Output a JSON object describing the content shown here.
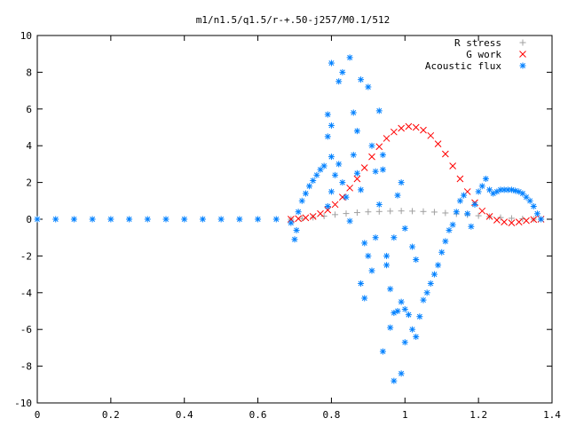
{
  "chart_data": {
    "type": "scatter",
    "title": "m1/n1.5/q1.5/r-+.50-j257/M0.1/512",
    "xlabel": "",
    "ylabel": "",
    "xlim": [
      0,
      1.4
    ],
    "ylim": [
      -10,
      10
    ],
    "x_ticks": [
      "0",
      "0.2",
      "0.4",
      "0.6",
      "0.8",
      "1",
      "1.2",
      "1.4"
    ],
    "y_ticks": [
      "-10",
      "-8",
      "-6",
      "-4",
      "-2",
      "0",
      "2",
      "4",
      "6",
      "8",
      "10"
    ],
    "grid": false,
    "legend_position": "top-right",
    "series": [
      {
        "name": "R stress",
        "marker": "plus",
        "color": "#a0a0a0",
        "points": [
          [
            0.69,
            0.0
          ],
          [
            0.72,
            0.04
          ],
          [
            0.75,
            0.1
          ],
          [
            0.78,
            0.17
          ],
          [
            0.81,
            0.25
          ],
          [
            0.84,
            0.31
          ],
          [
            0.87,
            0.36
          ],
          [
            0.9,
            0.4
          ],
          [
            0.93,
            0.42
          ],
          [
            0.96,
            0.44
          ],
          [
            0.99,
            0.45
          ],
          [
            1.02,
            0.44
          ],
          [
            1.05,
            0.42
          ],
          [
            1.08,
            0.39
          ],
          [
            1.11,
            0.34
          ],
          [
            1.14,
            0.29
          ],
          [
            1.17,
            0.24
          ],
          [
            1.2,
            0.19
          ],
          [
            1.23,
            0.14
          ],
          [
            1.26,
            0.09
          ],
          [
            1.29,
            0.05
          ],
          [
            1.32,
            0.02
          ],
          [
            1.35,
            0.0
          ],
          [
            1.37,
            0.0
          ]
        ]
      },
      {
        "name": "G work",
        "marker": "cross",
        "color": "#ff0000",
        "points": [
          [
            0.69,
            0.0
          ],
          [
            0.71,
            0.03
          ],
          [
            0.73,
            0.08
          ],
          [
            0.75,
            0.15
          ],
          [
            0.77,
            0.3
          ],
          [
            0.79,
            0.5
          ],
          [
            0.81,
            0.8
          ],
          [
            0.83,
            1.2
          ],
          [
            0.85,
            1.7
          ],
          [
            0.87,
            2.2
          ],
          [
            0.89,
            2.8
          ],
          [
            0.91,
            3.4
          ],
          [
            0.93,
            3.95
          ],
          [
            0.95,
            4.4
          ],
          [
            0.97,
            4.75
          ],
          [
            0.99,
            4.95
          ],
          [
            1.01,
            5.05
          ],
          [
            1.03,
            5.0
          ],
          [
            1.05,
            4.85
          ],
          [
            1.07,
            4.55
          ],
          [
            1.09,
            4.1
          ],
          [
            1.11,
            3.55
          ],
          [
            1.13,
            2.9
          ],
          [
            1.15,
            2.2
          ],
          [
            1.17,
            1.5
          ],
          [
            1.19,
            0.9
          ],
          [
            1.21,
            0.45
          ],
          [
            1.23,
            0.15
          ],
          [
            1.25,
            -0.05
          ],
          [
            1.27,
            -0.15
          ],
          [
            1.29,
            -0.2
          ],
          [
            1.31,
            -0.15
          ],
          [
            1.33,
            -0.08
          ],
          [
            1.35,
            -0.02
          ],
          [
            1.37,
            0.0
          ]
        ]
      },
      {
        "name": "Acoustic flux",
        "marker": "star",
        "color": "#0080ff",
        "points": [
          [
            0.0,
            0.0
          ],
          [
            0.05,
            0.0
          ],
          [
            0.1,
            0.0
          ],
          [
            0.15,
            0.0
          ],
          [
            0.2,
            0.0
          ],
          [
            0.25,
            0.0
          ],
          [
            0.3,
            0.0
          ],
          [
            0.35,
            0.0
          ],
          [
            0.4,
            0.0
          ],
          [
            0.45,
            0.0
          ],
          [
            0.5,
            0.0
          ],
          [
            0.55,
            0.0
          ],
          [
            0.6,
            0.0
          ],
          [
            0.65,
            0.0
          ],
          [
            0.69,
            -0.2
          ],
          [
            0.7,
            -1.1
          ],
          [
            0.705,
            -0.6
          ],
          [
            0.71,
            0.4
          ],
          [
            0.72,
            1.0
          ],
          [
            0.73,
            1.4
          ],
          [
            0.74,
            1.8
          ],
          [
            0.75,
            2.1
          ],
          [
            0.76,
            2.4
          ],
          [
            0.77,
            2.7
          ],
          [
            0.78,
            2.9
          ],
          [
            0.79,
            0.7
          ],
          [
            0.8,
            1.5
          ],
          [
            0.81,
            2.4
          ],
          [
            0.8,
            3.4
          ],
          [
            0.79,
            4.5
          ],
          [
            0.8,
            5.1
          ],
          [
            0.82,
            3.0
          ],
          [
            0.83,
            2.0
          ],
          [
            0.84,
            1.2
          ],
          [
            0.85,
            -0.1
          ],
          [
            0.79,
            5.7
          ],
          [
            0.8,
            8.5
          ],
          [
            0.82,
            7.5
          ],
          [
            0.83,
            8.0
          ],
          [
            0.85,
            8.8
          ],
          [
            0.86,
            5.8
          ],
          [
            0.87,
            4.8
          ],
          [
            0.88,
            7.6
          ],
          [
            0.9,
            7.2
          ],
          [
            0.86,
            3.5
          ],
          [
            0.87,
            2.5
          ],
          [
            0.88,
            1.6
          ],
          [
            0.89,
            -1.3
          ],
          [
            0.9,
            -2.0
          ],
          [
            0.91,
            -2.8
          ],
          [
            0.88,
            -3.5
          ],
          [
            0.89,
            -4.3
          ],
          [
            0.92,
            -1.0
          ],
          [
            0.93,
            0.8
          ],
          [
            0.94,
            2.7
          ],
          [
            0.95,
            -2.5
          ],
          [
            0.96,
            -3.8
          ],
          [
            0.97,
            -5.1
          ],
          [
            0.98,
            -5.0
          ],
          [
            0.99,
            -4.5
          ],
          [
            1.0,
            -4.9
          ],
          [
            1.01,
            -5.2
          ],
          [
            1.02,
            -6.0
          ],
          [
            1.03,
            -6.4
          ],
          [
            1.04,
            -5.3
          ],
          [
            1.05,
            -4.4
          ],
          [
            1.06,
            -4.0
          ],
          [
            1.07,
            -3.5
          ],
          [
            1.08,
            -3.0
          ],
          [
            1.09,
            -2.5
          ],
          [
            1.1,
            -1.8
          ],
          [
            1.11,
            -1.2
          ],
          [
            1.12,
            -0.6
          ],
          [
            1.13,
            -0.3
          ],
          [
            1.14,
            0.4
          ],
          [
            1.15,
            1.0
          ],
          [
            1.16,
            1.3
          ],
          [
            1.17,
            0.3
          ],
          [
            1.18,
            -0.4
          ],
          [
            1.19,
            0.8
          ],
          [
            1.2,
            1.5
          ],
          [
            1.21,
            1.8
          ],
          [
            1.22,
            2.2
          ],
          [
            1.23,
            1.6
          ],
          [
            1.24,
            1.4
          ],
          [
            1.25,
            1.5
          ],
          [
            1.26,
            1.6
          ],
          [
            1.27,
            1.6
          ],
          [
            1.28,
            1.6
          ],
          [
            1.29,
            1.6
          ],
          [
            1.3,
            1.55
          ],
          [
            1.31,
            1.5
          ],
          [
            1.32,
            1.4
          ],
          [
            1.33,
            1.2
          ],
          [
            1.34,
            1.0
          ],
          [
            1.35,
            0.7
          ],
          [
            1.36,
            0.3
          ],
          [
            1.37,
            0.0
          ],
          [
            0.94,
            -7.2
          ],
          [
            0.97,
            -8.8
          ],
          [
            0.99,
            -8.4
          ],
          [
            0.96,
            -5.9
          ],
          [
            1.0,
            -6.7
          ],
          [
            0.95,
            -2.0
          ],
          [
            0.97,
            -1.0
          ],
          [
            0.98,
            1.3
          ],
          [
            0.99,
            2.0
          ],
          [
            1.0,
            -0.5
          ],
          [
            1.02,
            -1.5
          ],
          [
            1.03,
            -2.2
          ],
          [
            0.92,
            2.6
          ],
          [
            0.91,
            4.0
          ],
          [
            0.93,
            5.9
          ],
          [
            0.94,
            3.5
          ]
        ]
      }
    ]
  }
}
